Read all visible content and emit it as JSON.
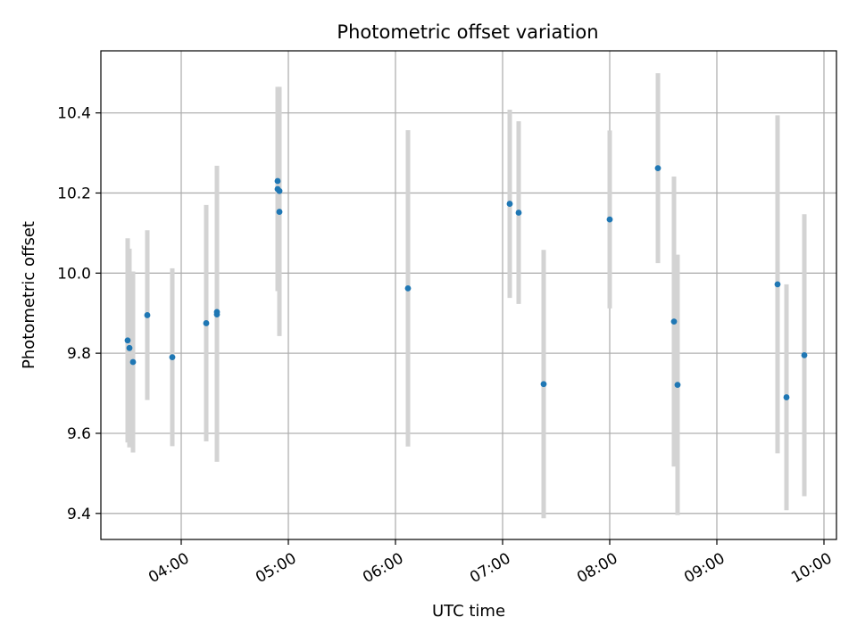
{
  "chart_data": {
    "type": "scatter",
    "title": "Photometric offset variation",
    "xlabel": "UTC time",
    "ylabel": "Photometric offset",
    "grid": true,
    "legend": "none",
    "xlim": [
      "03:15",
      "10:07"
    ],
    "ylim": [
      9.335,
      10.555
    ],
    "x_ticks": [
      "04:00",
      "05:00",
      "06:00",
      "07:00",
      "08:00",
      "09:00",
      "10:00"
    ],
    "y_ticks": [
      "9.4",
      "9.6",
      "9.8",
      "10.0",
      "10.2",
      "10.4"
    ],
    "y_tick_values": [
      9.4,
      9.6,
      9.8,
      10.0,
      10.2,
      10.4
    ],
    "colors": {
      "point": "#1f77b4",
      "errorbar": "#d3d3d3",
      "grid": "#b0b0b0"
    },
    "points": [
      {
        "x": "03:30",
        "y": 9.832,
        "err": 0.255
      },
      {
        "x": "03:31",
        "y": 9.813,
        "err": 0.248
      },
      {
        "x": "03:33",
        "y": 9.778,
        "err": 0.226
      },
      {
        "x": "03:41",
        "y": 9.895,
        "err": 0.212
      },
      {
        "x": "03:55",
        "y": 9.79,
        "err": 0.222
      },
      {
        "x": "04:14",
        "y": 9.875,
        "err": 0.295
      },
      {
        "x": "04:20",
        "y": 9.903,
        "err": 0.365
      },
      {
        "x": "04:20",
        "y": 9.897,
        "err": 0.368
      },
      {
        "x": "04:54",
        "y": 10.23,
        "err": 0.185
      },
      {
        "x": "04:54",
        "y": 10.21,
        "err": 0.255
      },
      {
        "x": "04:55",
        "y": 10.205,
        "err": 0.26
      },
      {
        "x": "04:55",
        "y": 10.153,
        "err": 0.31
      },
      {
        "x": "06:07",
        "y": 9.962,
        "err": 0.395
      },
      {
        "x": "07:04",
        "y": 10.173,
        "err": 0.235
      },
      {
        "x": "07:09",
        "y": 10.151,
        "err": 0.228
      },
      {
        "x": "07:23",
        "y": 9.723,
        "err": 0.335
      },
      {
        "x": "08:00",
        "y": 10.134,
        "err": 0.222
      },
      {
        "x": "08:27",
        "y": 10.262,
        "err": 0.237
      },
      {
        "x": "08:36",
        "y": 9.879,
        "err": 0.362
      },
      {
        "x": "08:38",
        "y": 9.721,
        "err": 0.325
      },
      {
        "x": "09:34",
        "y": 9.972,
        "err": 0.422
      },
      {
        "x": "09:39",
        "y": 9.69,
        "err": 0.282
      },
      {
        "x": "09:49",
        "y": 9.795,
        "err": 0.352
      }
    ]
  }
}
